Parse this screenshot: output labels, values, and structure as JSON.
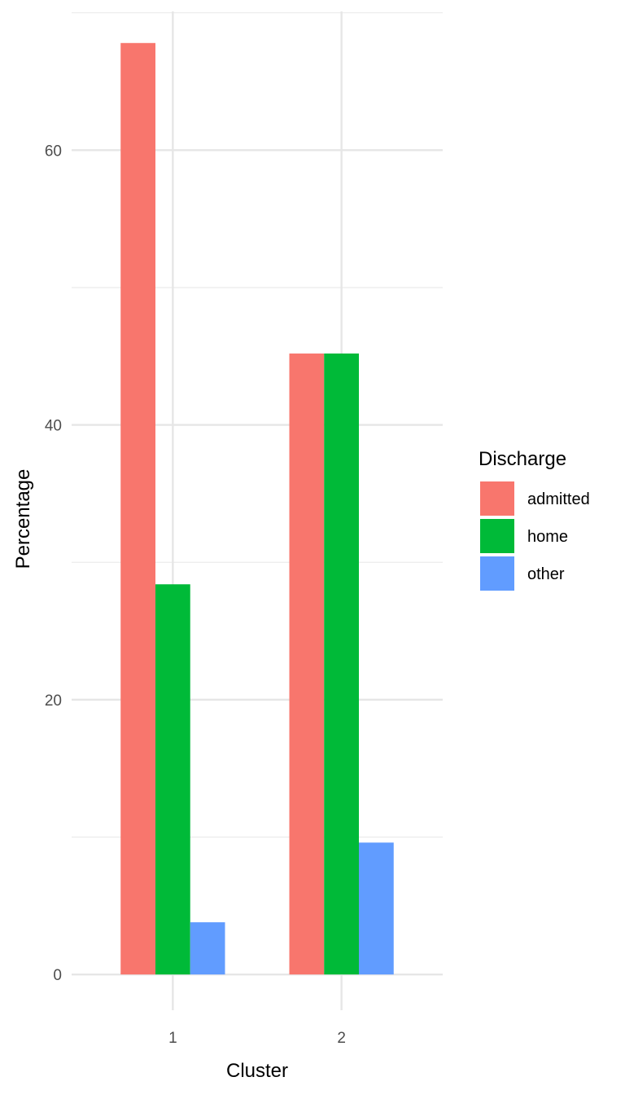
{
  "chart_data": {
    "type": "bar",
    "categories": [
      "1",
      "2"
    ],
    "series": [
      {
        "name": "admitted",
        "color": "#F8766D",
        "values": [
          67.8,
          45.2
        ]
      },
      {
        "name": "home",
        "color": "#00BA38",
        "values": [
          28.4,
          45.2
        ]
      },
      {
        "name": "other",
        "color": "#619CFF",
        "values": [
          3.8,
          9.6
        ]
      }
    ],
    "xlabel": "Cluster",
    "ylabel": "Percentage",
    "ylim": [
      -2.6,
      70.1
    ],
    "y_ticks": [
      0,
      20,
      40,
      60
    ],
    "y_tick_labels": [
      "0",
      "20",
      "40",
      "60"
    ],
    "y_minor_ticks": [
      10,
      30,
      50,
      70
    ],
    "legend": {
      "title": "Discharge",
      "position": "right"
    },
    "grid": true
  }
}
